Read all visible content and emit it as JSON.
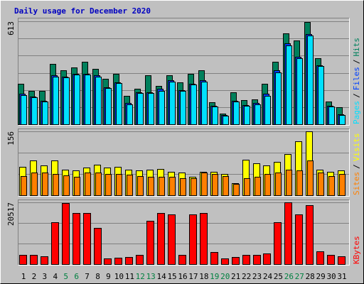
{
  "title": "Daily usage for December 2020",
  "chart_data": [
    {
      "type": "bar",
      "ylim": [
        0,
        613
      ],
      "yticks": [
        613
      ],
      "grid_lines": 6,
      "legend_separator": "/",
      "series": [
        {
          "name": "Hits",
          "color": "#00805c",
          "values": [
            240,
            200,
            200,
            360,
            320,
            340,
            370,
            330,
            270,
            300,
            170,
            210,
            290,
            230,
            290,
            250,
            300,
            320,
            130,
            65,
            190,
            145,
            150,
            240,
            370,
            540,
            500,
            610,
            395,
            135,
            100
          ]
        },
        {
          "name": "Files",
          "color": "#0040ff",
          "values": [
            180,
            165,
            140,
            290,
            285,
            300,
            300,
            290,
            220,
            250,
            125,
            190,
            190,
            210,
            260,
            205,
            240,
            260,
            110,
            55,
            140,
            115,
            125,
            180,
            320,
            480,
            400,
            535,
            350,
            110,
            60
          ]
        },
        {
          "name": "Pages",
          "color": "#00e0ff",
          "values": [
            175,
            160,
            135,
            285,
            280,
            295,
            295,
            285,
            215,
            245,
            120,
            185,
            185,
            200,
            255,
            200,
            235,
            255,
            105,
            50,
            135,
            110,
            120,
            170,
            310,
            470,
            395,
            530,
            345,
            105,
            55
          ]
        }
      ]
    },
    {
      "type": "bar",
      "ylim": [
        0,
        156
      ],
      "yticks": [
        156
      ],
      "grid_lines": 3,
      "legend_separator": "/",
      "series": [
        {
          "name": "Visits",
          "color": "#ffff00",
          "values": [
            69,
            85,
            72,
            85,
            62,
            60,
            68,
            75,
            67,
            70,
            62,
            60,
            62,
            64,
            58,
            55,
            45,
            58,
            58,
            52,
            30,
            86,
            78,
            72,
            82,
            100,
            132,
            156,
            63,
            58,
            60
          ]
        },
        {
          "name": "Sites",
          "color": "#ff8000",
          "values": [
            47,
            55,
            55,
            52,
            48,
            45,
            55,
            55,
            52,
            52,
            50,
            47,
            45,
            45,
            45,
            42,
            42,
            55,
            52,
            47,
            28,
            42,
            45,
            52,
            55,
            62,
            60,
            85,
            55,
            47,
            52
          ]
        }
      ]
    },
    {
      "type": "bar",
      "ylim": [
        0,
        20517
      ],
      "yticks": [
        20517
      ],
      "grid_lines": 3,
      "categories": [
        "1",
        "2",
        "3",
        "4",
        "5",
        "6",
        "7",
        "8",
        "9",
        "10",
        "11",
        "12",
        "13",
        "14",
        "15",
        "16",
        "17",
        "18",
        "19",
        "20",
        "21",
        "22",
        "23",
        "24",
        "25",
        "26",
        "27",
        "28",
        "29",
        "30",
        "31"
      ],
      "category_colors": [
        "#000000",
        "#000000",
        "#000000",
        "#000000",
        "#008040",
        "#008040",
        "#000000",
        "#000000",
        "#000000",
        "#000000",
        "#000000",
        "#008040",
        "#008040",
        "#000000",
        "#000000",
        "#000000",
        "#000000",
        "#000000",
        "#008040",
        "#008040",
        "#000000",
        "#000000",
        "#000000",
        "#000000",
        "#000000",
        "#008040",
        "#008040",
        "#000000",
        "#000000",
        "#000000",
        "#000000"
      ],
      "series": [
        {
          "name": "KBytes",
          "color": "#ff0000",
          "values": [
            3000,
            3000,
            2500,
            14000,
            20300,
            17000,
            17000,
            12000,
            1800,
            2200,
            2300,
            3000,
            14300,
            17000,
            16500,
            3000,
            16500,
            17000,
            4000,
            1800,
            2300,
            3000,
            3000,
            3500,
            14000,
            20500,
            16500,
            19500,
            4200,
            3000,
            2500
          ]
        }
      ]
    }
  ]
}
